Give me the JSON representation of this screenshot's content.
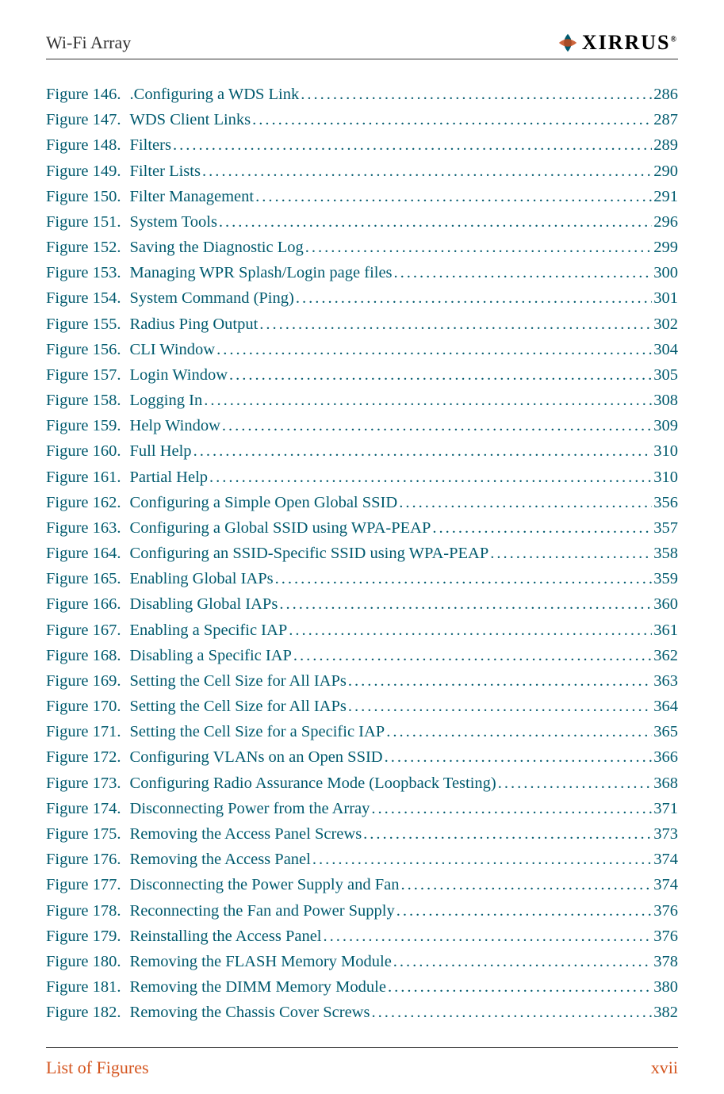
{
  "header": {
    "title": "Wi-Fi Array",
    "logo_text": "XIRRUS"
  },
  "footer": {
    "left": "List of Figures",
    "right": "xvii"
  },
  "colors": {
    "link_color": "#005a6e",
    "footer_color": "#d4551f",
    "text_color": "#333333",
    "background": "#ffffff"
  },
  "typography": {
    "body_fontsize": 20.5,
    "header_fontsize": 22,
    "footer_fontsize": 22,
    "font_family": "Palatino Linotype"
  },
  "entries": [
    {
      "num": "Figure 146.",
      "title": ".Configuring a WDS Link",
      "page": "286"
    },
    {
      "num": "Figure 147.",
      "title": "WDS Client Links",
      "page": "287"
    },
    {
      "num": "Figure 148.",
      "title": "Filters",
      "page": "289"
    },
    {
      "num": "Figure 149.",
      "title": "Filter Lists",
      "page": "290"
    },
    {
      "num": "Figure 150.",
      "title": "Filter Management",
      "page": "291"
    },
    {
      "num": "Figure 151.",
      "title": "System Tools",
      "page": "296"
    },
    {
      "num": "Figure 152.",
      "title": "Saving the Diagnostic Log",
      "page": "299"
    },
    {
      "num": "Figure 153.",
      "title": "Managing WPR Splash/Login page files",
      "page": "300"
    },
    {
      "num": "Figure 154.",
      "title": "System Command (Ping)",
      "page": "301"
    },
    {
      "num": "Figure 155.",
      "title": "Radius Ping Output",
      "page": "302"
    },
    {
      "num": "Figure 156.",
      "title": "CLI Window",
      "page": "304"
    },
    {
      "num": "Figure 157.",
      "title": "Login Window",
      "page": "305"
    },
    {
      "num": "Figure 158.",
      "title": "Logging In",
      "page": "308"
    },
    {
      "num": "Figure 159.",
      "title": "Help Window",
      "page": "309"
    },
    {
      "num": "Figure 160.",
      "title": "Full Help",
      "page": "310"
    },
    {
      "num": "Figure 161.",
      "title": "Partial Help",
      "page": "310"
    },
    {
      "num": "Figure 162.",
      "title": "Configuring a Simple Open Global SSID",
      "page": "356"
    },
    {
      "num": "Figure 163.",
      "title": "Configuring a Global SSID using WPA-PEAP",
      "page": "357"
    },
    {
      "num": "Figure 164.",
      "title": "Configuring an SSID-Specific SSID using WPA-PEAP",
      "page": "358"
    },
    {
      "num": "Figure 165.",
      "title": "Enabling Global IAPs",
      "page": "359"
    },
    {
      "num": "Figure 166.",
      "title": "Disabling Global IAPs",
      "page": "360"
    },
    {
      "num": "Figure 167.",
      "title": "Enabling a Specific IAP",
      "page": "361"
    },
    {
      "num": "Figure 168.",
      "title": "Disabling a Specific IAP",
      "page": "362"
    },
    {
      "num": "Figure 169.",
      "title": "Setting the Cell Size for All IAPs",
      "page": "363"
    },
    {
      "num": "Figure 170.",
      "title": "Setting the Cell Size for All IAPs",
      "page": "364"
    },
    {
      "num": "Figure 171.",
      "title": "Setting the Cell Size for a Specific IAP",
      "page": "365"
    },
    {
      "num": "Figure 172.",
      "title": "Configuring VLANs on an Open SSID",
      "page": "366"
    },
    {
      "num": "Figure 173.",
      "title": "Configuring Radio Assurance Mode (Loopback Testing)",
      "page": "368"
    },
    {
      "num": "Figure 174.",
      "title": "Disconnecting Power from the Array",
      "page": "371"
    },
    {
      "num": "Figure 175.",
      "title": "Removing the Access Panel Screws",
      "page": "373"
    },
    {
      "num": "Figure 176.",
      "title": "Removing the Access Panel",
      "page": "374"
    },
    {
      "num": "Figure 177.",
      "title": "Disconnecting the Power Supply and Fan",
      "page": "374"
    },
    {
      "num": "Figure 178.",
      "title": "Reconnecting the Fan and Power Supply",
      "page": "376"
    },
    {
      "num": "Figure 179.",
      "title": "Reinstalling the Access Panel",
      "page": "376"
    },
    {
      "num": "Figure 180.",
      "title": "Removing the FLASH Memory Module",
      "page": "378"
    },
    {
      "num": "Figure 181.",
      "title": "Removing the DIMM Memory Module",
      "page": "380"
    },
    {
      "num": "Figure 182.",
      "title": "Removing the Chassis Cover Screws",
      "page": "382"
    }
  ]
}
